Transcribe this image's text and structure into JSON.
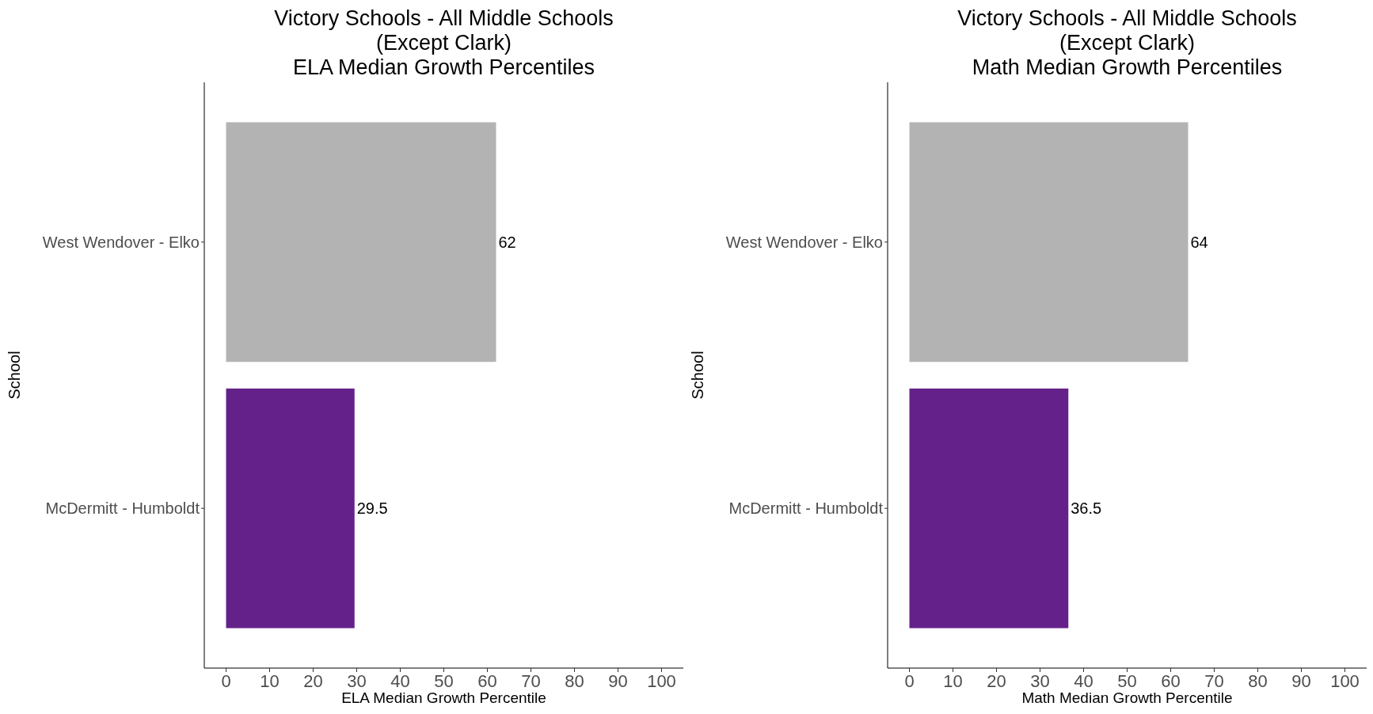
{
  "chart_data": [
    {
      "type": "bar",
      "orientation": "horizontal",
      "title": "Victory Schools - All Middle Schools\n(Except Clark)\nELA Median Growth Percentiles",
      "xlabel": "ELA Median Growth Percentile",
      "ylabel": "School",
      "categories": [
        "West Wendover - Elko",
        "McDermitt - Humboldt"
      ],
      "values": [
        62,
        29.5
      ],
      "colors": [
        "#b3b3b3",
        "#65218a"
      ],
      "xlim": [
        -5,
        105
      ],
      "xticks": [
        0,
        10,
        20,
        30,
        40,
        50,
        60,
        70,
        80,
        90,
        100
      ],
      "data_labels": true,
      "grid": false
    },
    {
      "type": "bar",
      "orientation": "horizontal",
      "title": "Victory Schools - All Middle Schools\n(Except Clark)\nMath Median Growth Percentiles",
      "xlabel": "Math Median Growth Percentile",
      "ylabel": "School",
      "categories": [
        "West Wendover - Elko",
        "McDermitt - Humboldt"
      ],
      "values": [
        64,
        36.5
      ],
      "colors": [
        "#b3b3b3",
        "#65218a"
      ],
      "xlim": [
        -5,
        105
      ],
      "xticks": [
        0,
        10,
        20,
        30,
        40,
        50,
        60,
        70,
        80,
        90,
        100
      ],
      "data_labels": true,
      "grid": false
    }
  ]
}
